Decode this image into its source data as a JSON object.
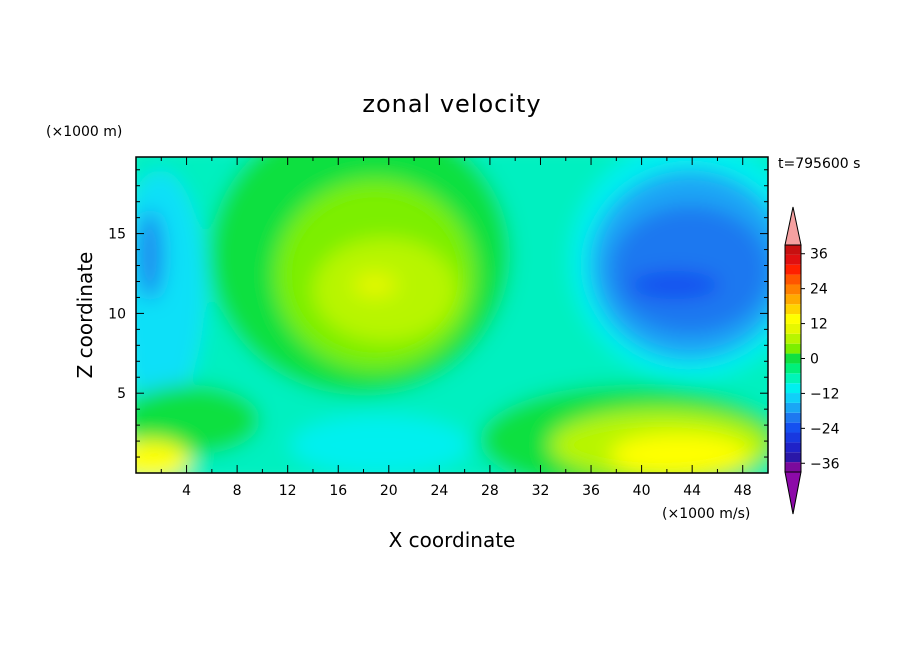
{
  "chart_data": {
    "type": "heatmap",
    "title": "zonal velocity",
    "xlabel": "X coordinate",
    "ylabel": "Z coordinate",
    "x_unit_label": "(×1000 m/s)",
    "y_unit_label": "(×1000 m)",
    "time_label": "t=795600 s",
    "xlim": [
      0,
      50
    ],
    "ylim": [
      0,
      19.8
    ],
    "x_ticks": [
      4,
      8,
      12,
      16,
      20,
      24,
      28,
      32,
      36,
      40,
      44,
      48
    ],
    "y_ticks": [
      5,
      10,
      15
    ],
    "colorbar": {
      "levels": [
        -42,
        -39,
        -36,
        -33,
        -30,
        -27,
        -24,
        -21,
        -18,
        -15,
        -12,
        -9,
        -6,
        -3,
        0,
        3,
        6,
        9,
        12,
        15,
        18,
        21,
        24,
        27,
        30,
        33,
        36,
        39,
        42
      ],
      "tick_values": [
        36,
        24,
        12,
        0,
        -12,
        -24,
        -36
      ],
      "tick_labels": [
        "36",
        "24",
        "12",
        "0",
        "−12",
        "−24",
        "−36"
      ],
      "colors": [
        "#7b0a9c",
        "#2a17a8",
        "#1f22c8",
        "#1838e0",
        "#1550f0",
        "#1e78f0",
        "#1aa6f5",
        "#10d0f8",
        "#00f0ef",
        "#00f5b8",
        "#00f07a",
        "#10e040",
        "#7bef00",
        "#b8f500",
        "#e6f800",
        "#ffff00",
        "#ffd400",
        "#ffaa00",
        "#ff8000",
        "#ff5500",
        "#ff2000",
        "#e01010",
        "#c81010"
      ],
      "under_color": "#8c0aa8",
      "over_color": "#f5a0a0"
    },
    "grid": false
  }
}
